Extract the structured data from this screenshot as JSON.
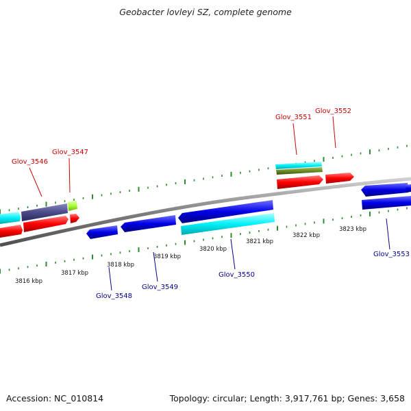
{
  "title": "Geobacter lovleyi SZ, complete genome",
  "footer": {
    "accession": "Accession: NC_010814",
    "summary": "Topology: circular; Length: 3,917,761 bp; Genes: 3,658"
  },
  "colors": {
    "backbone": "#808080",
    "tick": "#2e8b2e",
    "label_top": "#cc0000",
    "label_bottom": "#00008b",
    "red": "#ff0000",
    "blue": "#0000e6",
    "cyan": "#00e8f0",
    "slate": "#4a4a8a",
    "lime": "#a8ff30",
    "olive": "#6b8e23"
  },
  "kbp_labels": [
    "3816 kbp",
    "3817 kbp",
    "3818 kbp",
    "3819 kbp",
    "3820 kbp",
    "3821 kbp",
    "3822 kbp",
    "3823 kbp"
  ],
  "gene_labels_top": [
    "Glov_3546",
    "Glov_3547",
    "Glov_3551",
    "Glov_3552"
  ],
  "gene_labels_bottom": [
    "Glov_3548",
    "Glov_3549",
    "Glov_3550",
    "Glov_3553"
  ]
}
